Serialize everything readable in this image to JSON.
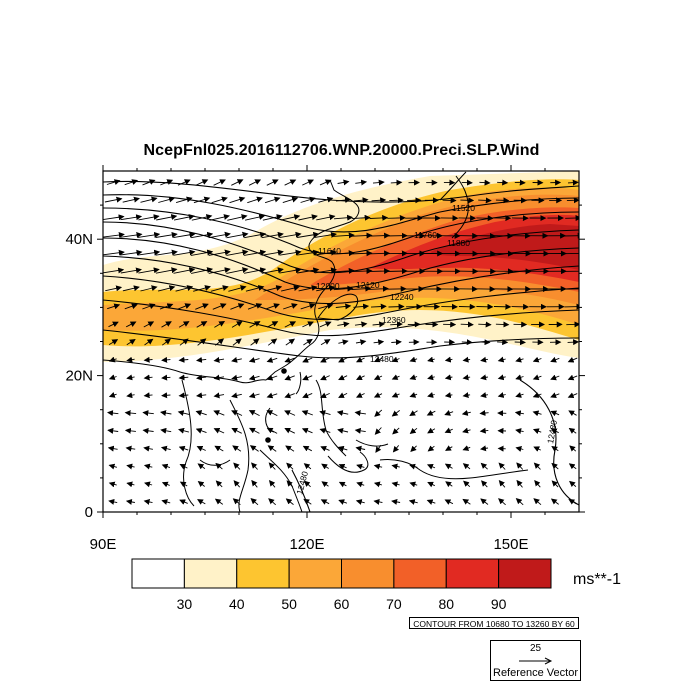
{
  "title": "NcepFnl025.2016112706.WNP.20000.Preci.SLP.Wind",
  "map": {
    "lon_range": [
      90,
      160
    ],
    "lat_range": [
      0,
      50
    ],
    "x_ticks": [
      {
        "value": 90,
        "label": "90E"
      },
      {
        "value": 120,
        "label": "120E"
      },
      {
        "value": 150,
        "label": "150E"
      }
    ],
    "y_ticks": [
      {
        "value": 0,
        "label": "0"
      },
      {
        "value": 20,
        "label": "20N"
      },
      {
        "value": 40,
        "label": "40N"
      }
    ],
    "contour_labels": [
      "11520",
      "11640",
      "11760",
      "11880",
      "12000",
      "12120",
      "12240",
      "12360",
      "12480",
      "12480",
      "12480"
    ],
    "station_markers": 2
  },
  "colorbar": {
    "levels": [
      "30",
      "40",
      "50",
      "60",
      "70",
      "80",
      "90"
    ],
    "colors": [
      "#ffffff",
      "#fff2c8",
      "#fdc530",
      "#fba738",
      "#f88e2e",
      "#f26028",
      "#e12a22",
      "#c01a1a"
    ],
    "units": "ms**-1"
  },
  "contour_info": "CONTOUR FROM 10680 TO 13260 BY 60",
  "reference_vector": {
    "value": "25",
    "label": "Reference Vector"
  }
}
